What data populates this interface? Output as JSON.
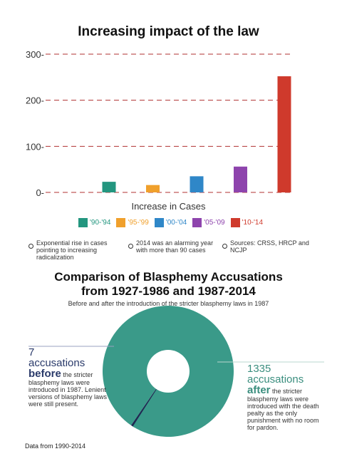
{
  "colors": {
    "gridline": "#b03030",
    "pie_large": "#3a9a89",
    "pie_small": "#1f2a52"
  },
  "bar_chart_title": "Increasing impact of the law",
  "bar_xlabel": "Increase in Cases",
  "bar_notes": [
    "Exponential rise in cases pointing to increasing radicalization",
    "2014 was an alarming year with more than 90 cases",
    "Sources: CRSS, HRCP and NCJP"
  ],
  "pie_title_line1": "Comparison of Blasphemy Accusations",
  "pie_title_line2": "from 1927-1986 and 1987-2014",
  "pie_subtitle": "Before and after the introduction of the stricter blasphemy laws in 1987",
  "left_annotation": {
    "count": "7",
    "word": "accusations",
    "when": "before",
    "text": "the stricter blasphemy laws were introduced in 1987. Lenient versions of blasphemy laws were still present."
  },
  "right_annotation": {
    "count": "1335",
    "word": "accusations",
    "when": "after",
    "text": "the stricter blasphemy laws were introduced with the death pealty as the only punishment with no room for pardon."
  },
  "source_note": "Data from 1990-2014",
  "chart_data": [
    {
      "type": "bar",
      "title": "Increasing impact of the law",
      "xlabel": "Increase in Cases",
      "ylabel": "",
      "categories": [
        "'90-'94",
        "'95-'99",
        "'00-'04",
        "'05-'09",
        "'10-'14"
      ],
      "values": [
        23,
        16,
        35,
        56,
        252
      ],
      "colors": [
        "#23967f",
        "#f0a02c",
        "#2f87c8",
        "#8e44ad",
        "#cf3a2c"
      ],
      "ylim": [
        0,
        300
      ],
      "yticks": [
        0,
        100,
        200,
        300
      ],
      "grid": true,
      "legend": "bottom"
    },
    {
      "type": "pie",
      "title": "Comparison of Blasphemy Accusations from 1927-1986 and 1987-2014",
      "categories": [
        "before",
        "after"
      ],
      "values": [
        7,
        1335
      ],
      "colors": [
        "#1f2a52",
        "#3a9a89"
      ],
      "donut": true
    }
  ]
}
